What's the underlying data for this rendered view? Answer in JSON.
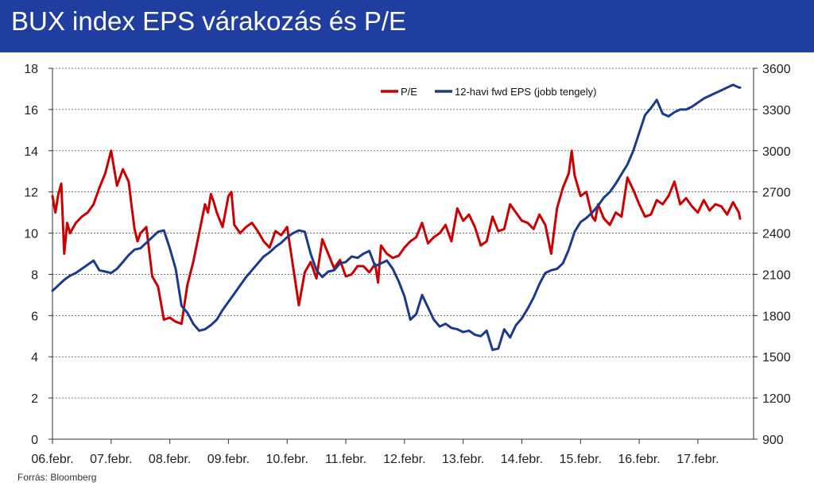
{
  "header": {
    "title": "BUX index EPS várakozás és P/E"
  },
  "source": "Forrás: Bloomberg",
  "colors": {
    "header_bg": "#1f3ea0",
    "pe": "#cc0000",
    "eps": "#1a3a8c"
  },
  "chart_data": {
    "type": "line",
    "title": "BUX index EPS várakozás és P/E",
    "xlabel": "",
    "ylabel": "",
    "x_ticks": [
      "06.febr.",
      "07.febr.",
      "08.febr.",
      "09.febr.",
      "10.febr.",
      "11.febr.",
      "12.febr.",
      "13.febr.",
      "14.febr.",
      "15.febr.",
      "16.febr.",
      "17.febr."
    ],
    "x_range": [
      2006.0,
      2017.95
    ],
    "y_left": {
      "range": [
        0,
        18
      ],
      "ticks": [
        0,
        2,
        4,
        6,
        8,
        10,
        12,
        14,
        16,
        18
      ]
    },
    "y_right": {
      "range": [
        900,
        3600
      ],
      "ticks": [
        900,
        1200,
        1500,
        1800,
        2100,
        2400,
        2700,
        3000,
        3300,
        3600
      ],
      "label": "jobb tengely"
    },
    "grid": "horizontal dashed",
    "legend_position": "top-right",
    "series": [
      {
        "name": "P/E",
        "axis": "left",
        "color": "#cc0000",
        "x": [
          2006.0,
          2006.05,
          2006.1,
          2006.15,
          2006.2,
          2006.25,
          2006.3,
          2006.4,
          2006.5,
          2006.6,
          2006.7,
          2006.8,
          2006.9,
          2007.0,
          2007.1,
          2007.2,
          2007.3,
          2007.35,
          2007.4,
          2007.45,
          2007.5,
          2007.6,
          2007.7,
          2007.8,
          2007.9,
          2008.0,
          2008.1,
          2008.2,
          2008.3,
          2008.4,
          2008.5,
          2008.6,
          2008.65,
          2008.7,
          2008.75,
          2008.8,
          2008.9,
          2009.0,
          2009.05,
          2009.1,
          2009.2,
          2009.3,
          2009.4,
          2009.5,
          2009.6,
          2009.7,
          2009.8,
          2009.9,
          2010.0,
          2010.1,
          2010.2,
          2010.3,
          2010.4,
          2010.5,
          2010.6,
          2010.7,
          2010.8,
          2010.9,
          2011.0,
          2011.1,
          2011.2,
          2011.3,
          2011.4,
          2011.5,
          2011.55,
          2011.6,
          2011.7,
          2011.75,
          2011.8,
          2011.9,
          2012.0,
          2012.1,
          2012.2,
          2012.3,
          2012.4,
          2012.5,
          2012.6,
          2012.7,
          2012.8,
          2012.9,
          2013.0,
          2013.1,
          2013.2,
          2013.3,
          2013.4,
          2013.5,
          2013.6,
          2013.7,
          2013.8,
          2013.9,
          2014.0,
          2014.1,
          2014.2,
          2014.3,
          2014.4,
          2014.5,
          2014.6,
          2014.7,
          2014.8,
          2014.85,
          2014.9,
          2015.0,
          2015.1,
          2015.2,
          2015.25,
          2015.3,
          2015.4,
          2015.5,
          2015.6,
          2015.7,
          2015.8,
          2015.9,
          2016.0,
          2016.1,
          2016.2,
          2016.3,
          2016.4,
          2016.5,
          2016.6,
          2016.7,
          2016.8,
          2016.9,
          2017.0,
          2017.1,
          2017.2,
          2017.3,
          2017.4,
          2017.5,
          2017.6,
          2017.7,
          2017.72
        ],
        "values": [
          11.8,
          11.0,
          11.9,
          12.4,
          9.0,
          10.5,
          10.0,
          10.5,
          10.8,
          11.0,
          11.4,
          12.2,
          12.9,
          14.0,
          12.3,
          13.1,
          12.5,
          11.3,
          10.2,
          9.6,
          10.0,
          10.3,
          7.9,
          7.4,
          5.8,
          5.9,
          5.7,
          5.6,
          7.5,
          8.6,
          10.0,
          11.4,
          11.0,
          11.9,
          11.5,
          11.0,
          10.3,
          11.8,
          12.0,
          10.4,
          10.0,
          10.3,
          10.5,
          10.1,
          9.6,
          9.3,
          10.1,
          9.9,
          10.3,
          8.4,
          6.5,
          8.1,
          8.6,
          7.8,
          9.7,
          9.0,
          8.3,
          8.7,
          7.9,
          8.0,
          8.4,
          8.4,
          8.1,
          8.5,
          7.6,
          9.4,
          9.0,
          8.9,
          8.8,
          8.9,
          9.3,
          9.6,
          9.8,
          10.5,
          9.5,
          9.8,
          10.0,
          10.4,
          9.6,
          11.2,
          10.6,
          10.9,
          10.3,
          9.4,
          9.6,
          10.8,
          10.1,
          10.2,
          11.4,
          11.0,
          10.6,
          10.5,
          10.2,
          10.9,
          10.4,
          9.0,
          11.2,
          12.2,
          12.9,
          14.0,
          12.8,
          11.8,
          12.0,
          10.8,
          10.6,
          11.4,
          10.7,
          10.4,
          11.0,
          10.8,
          12.7,
          12.1,
          11.4,
          10.8,
          10.9,
          11.6,
          11.4,
          11.8,
          12.5,
          11.4,
          11.7,
          11.3,
          11.0,
          11.6,
          11.1,
          11.4,
          11.3,
          10.9,
          11.5,
          11.0,
          10.7
        ],
        "note_values": "see combined list"
      },
      {
        "name": "12-havi fwd EPS (jobb tengely)",
        "axis": "right",
        "color": "#1a3a8c",
        "x": [
          2006.0,
          2006.1,
          2006.2,
          2006.3,
          2006.4,
          2006.5,
          2006.6,
          2006.7,
          2006.8,
          2006.9,
          2007.0,
          2007.1,
          2007.2,
          2007.3,
          2007.4,
          2007.5,
          2007.6,
          2007.7,
          2007.8,
          2007.9,
          2008.0,
          2008.1,
          2008.2,
          2008.3,
          2008.4,
          2008.5,
          2008.6,
          2008.7,
          2008.8,
          2008.9,
          2009.0,
          2009.1,
          2009.2,
          2009.3,
          2009.4,
          2009.5,
          2009.6,
          2009.7,
          2009.8,
          2009.9,
          2010.0,
          2010.1,
          2010.2,
          2010.3,
          2010.4,
          2010.5,
          2010.6,
          2010.7,
          2010.8,
          2010.9,
          2011.0,
          2011.1,
          2011.2,
          2011.3,
          2011.4,
          2011.5,
          2011.6,
          2011.7,
          2011.8,
          2011.9,
          2012.0,
          2012.1,
          2012.2,
          2012.3,
          2012.4,
          2012.5,
          2012.6,
          2012.7,
          2012.8,
          2012.9,
          2013.0,
          2013.1,
          2013.2,
          2013.3,
          2013.4,
          2013.5,
          2013.6,
          2013.7,
          2013.8,
          2013.9,
          2014.0,
          2014.1,
          2014.2,
          2014.3,
          2014.4,
          2014.5,
          2014.6,
          2014.7,
          2014.8,
          2014.9,
          2015.0,
          2015.1,
          2015.2,
          2015.3,
          2015.4,
          2015.5,
          2015.6,
          2015.7,
          2015.8,
          2015.9,
          2016.0,
          2016.1,
          2016.2,
          2016.3,
          2016.4,
          2016.5,
          2016.6,
          2016.7,
          2016.8,
          2016.9,
          2017.0,
          2017.1,
          2017.2,
          2017.3,
          2017.4,
          2017.5,
          2017.6,
          2017.7,
          2017.72
        ],
        "values": [
          1980,
          2020,
          2060,
          2090,
          2110,
          2140,
          2170,
          2200,
          2130,
          2120,
          2110,
          2140,
          2190,
          2240,
          2280,
          2290,
          2330,
          2370,
          2410,
          2420,
          2290,
          2140,
          1870,
          1820,
          1740,
          1690,
          1700,
          1730,
          1770,
          1840,
          1900,
          1960,
          2020,
          2080,
          2130,
          2180,
          2230,
          2260,
          2300,
          2330,
          2370,
          2400,
          2420,
          2410,
          2250,
          2130,
          2080,
          2120,
          2130,
          2180,
          2190,
          2230,
          2220,
          2250,
          2270,
          2160,
          2180,
          2200,
          2140,
          2050,
          1940,
          1770,
          1810,
          1950,
          1860,
          1770,
          1720,
          1740,
          1710,
          1700,
          1680,
          1690,
          1660,
          1650,
          1690,
          1550,
          1560,
          1700,
          1640,
          1730,
          1780,
          1850,
          1930,
          2030,
          2110,
          2130,
          2140,
          2180,
          2280,
          2410,
          2480,
          2510,
          2550,
          2600,
          2660,
          2700,
          2760,
          2830,
          2900,
          3000,
          3130,
          3260,
          3310,
          3370,
          3270,
          3250,
          3280,
          3300,
          3300,
          3320,
          3350,
          3380,
          3400,
          3420,
          3440,
          3460,
          3480,
          3460,
          3460
        ],
        "note_values": "see combined list"
      }
    ]
  }
}
